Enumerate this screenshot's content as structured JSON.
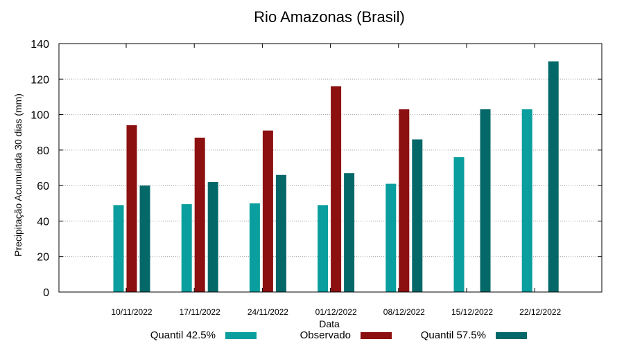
{
  "chart_data": {
    "type": "bar",
    "title": "Rio Amazonas (Brasil)",
    "xlabel": "Data",
    "ylabel": "Precipitação Acumulada 30 dias (mm)",
    "ylim": [
      0,
      140
    ],
    "yticks": [
      0,
      20,
      40,
      60,
      80,
      100,
      120,
      140
    ],
    "grid": true,
    "legend_position": "bottom",
    "categories": [
      "10/11/2022",
      "17/11/2022",
      "24/11/2022",
      "01/12/2022",
      "08/12/2022",
      "15/12/2022",
      "22/12/2022"
    ],
    "series": [
      {
        "name": "Quantil 42.5%",
        "color": "#0a9e9e",
        "values": [
          49,
          49.5,
          50,
          49,
          61,
          76,
          103
        ]
      },
      {
        "name": "Observado",
        "color": "#8c1010",
        "values": [
          94,
          87,
          91,
          116,
          103,
          null,
          null
        ]
      },
      {
        "name": "Quantil 57.5%",
        "color": "#056868",
        "values": [
          60,
          62,
          66,
          67,
          86,
          103,
          130
        ]
      }
    ]
  }
}
